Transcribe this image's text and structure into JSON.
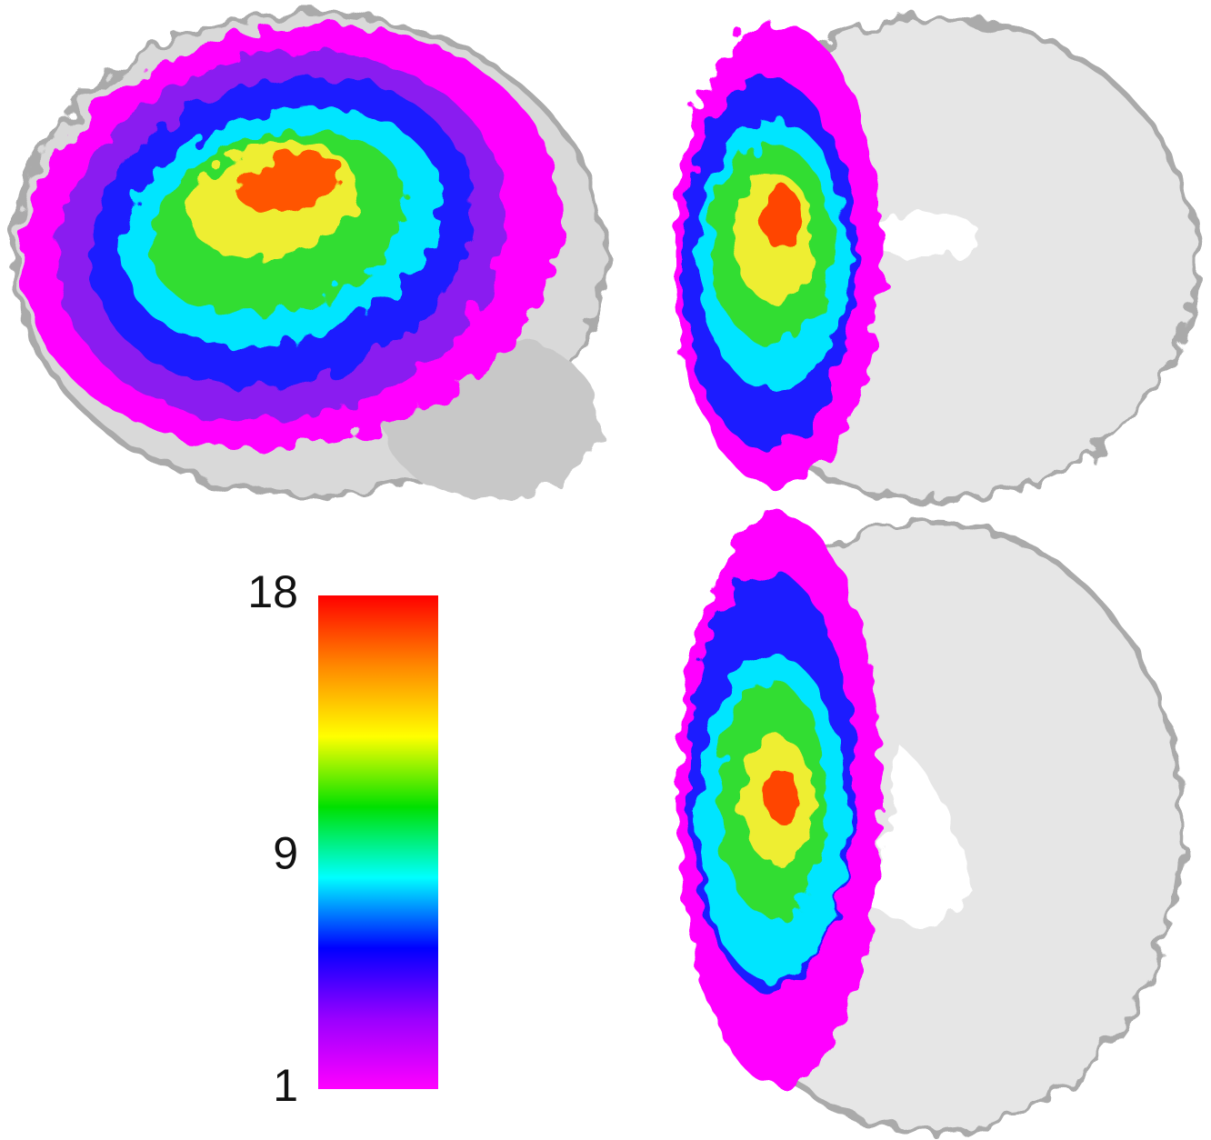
{
  "colorbar": {
    "ticks": [
      18,
      9,
      1
    ],
    "colors": [
      "#ff00ff",
      "#9900ff",
      "#0000ff",
      "#00ffff",
      "#00e000",
      "#ffff00",
      "#ff8800",
      "#ff0000"
    ]
  }
}
